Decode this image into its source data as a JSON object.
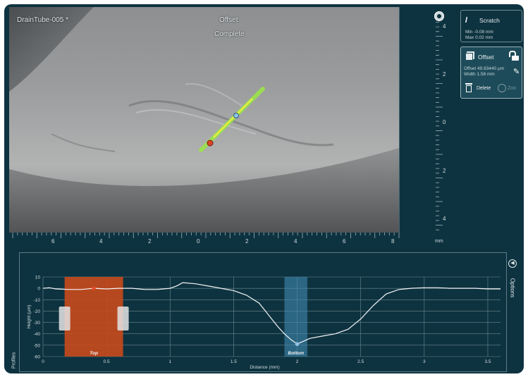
{
  "image_view": {
    "file_title": "DrainTube-005 *",
    "measurement_title": "Offset",
    "status": "Complete"
  },
  "vertical_ruler": {
    "ticks": [
      "4",
      "2",
      "0",
      "2",
      "4"
    ]
  },
  "horizontal_ruler": {
    "ticks": [
      "6",
      "4",
      "2",
      "0",
      "2",
      "4",
      "6",
      "8"
    ],
    "unit": "mm"
  },
  "panel": {
    "scratch": {
      "label": "Scratch",
      "min": "Min -0.08 mm",
      "max": "Max 0.02 mm"
    },
    "offset": {
      "label": "Offset",
      "offset_value": "Offset 49.83440 µm",
      "width_value": "Width 1.58 mm",
      "delete_label": "Delete",
      "zoom_label": "Zoo"
    }
  },
  "profile": {
    "side_tab_label": "Profiles",
    "options_label": "Options",
    "top_band_label": "Top",
    "bottom_band_label": "Bottom"
  },
  "chart_data": {
    "type": "line",
    "xlabel": "Distance (mm)",
    "ylabel": "Height (µm)",
    "xlim": [
      0,
      3.6
    ],
    "ylim": [
      -60,
      10
    ],
    "x_ticks": [
      "0",
      "0.5",
      "1",
      "1.5",
      "2",
      "2.5",
      "3",
      "3.5"
    ],
    "y_ticks": [
      "10",
      "0",
      "-10",
      "-20",
      "-30",
      "-40",
      "-50",
      "-60"
    ],
    "series": [
      {
        "x": [
          0,
          0.05,
          0.1,
          0.2,
          0.3,
          0.4,
          0.5,
          0.6,
          0.7,
          0.8,
          0.9,
          1.0,
          1.05,
          1.1,
          1.2,
          1.3,
          1.4,
          1.5,
          1.6,
          1.7,
          1.75,
          1.8,
          1.85,
          1.9,
          1.95,
          2.0,
          2.1,
          2.2,
          2.3,
          2.4,
          2.5,
          2.6,
          2.7,
          2.8,
          2.9,
          3.0,
          3.1,
          3.2,
          3.3,
          3.4,
          3.5,
          3.6
        ],
        "values": [
          0,
          0.5,
          -0.5,
          -1,
          -1,
          0,
          -0.5,
          0,
          0,
          -1,
          -1,
          0,
          2,
          5,
          4,
          2,
          0,
          -2,
          -6,
          -13,
          -20,
          -27,
          -34,
          -40,
          -45,
          -49,
          -44,
          -42,
          -40,
          -36,
          -27,
          -15,
          -5,
          -1,
          0,
          0.5,
          0.5,
          0,
          0,
          0,
          -0.5,
          -0.5
        ]
      }
    ],
    "top_band": [
      0.17,
      0.63
    ],
    "bottom_band": [
      1.9,
      2.08
    ],
    "top_marker": [
      0.4,
      0
    ],
    "bottom_marker": [
      2.0,
      -49
    ],
    "grid": true
  }
}
